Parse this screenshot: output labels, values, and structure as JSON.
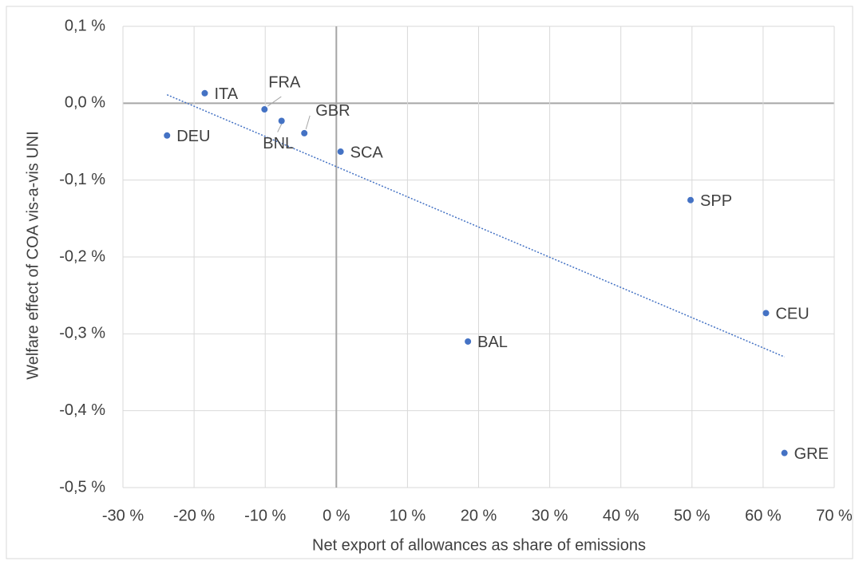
{
  "chart_data": {
    "type": "scatter",
    "xlabel": "Net export of allowances as share of emissions",
    "ylabel": "Welfare effect of COA vis-a-vis UNI",
    "labels": [
      "ITA",
      "FRA",
      "BNL",
      "GBR",
      "DEU",
      "SCA",
      "SPP",
      "CEU",
      "BAL",
      "GRE"
    ],
    "x": [
      -18.5,
      -10.1,
      -7.7,
      -4.5,
      -23.8,
      0.6,
      49.8,
      60.4,
      18.5,
      63.0
    ],
    "y": [
      0.013,
      -0.008,
      -0.023,
      -0.039,
      -0.042,
      -0.063,
      -0.126,
      -0.273,
      -0.31,
      -0.455
    ],
    "color": "#4472c4",
    "trendline": {
      "x": [
        -23.8,
        63.0
      ],
      "y": [
        0.011,
        -0.33
      ]
    },
    "xlim": [
      -30,
      70
    ],
    "xticks": [
      {
        "value": -30,
        "label": "-30 %"
      },
      {
        "value": -20,
        "label": "-20 %"
      },
      {
        "value": -10,
        "label": "-10 %"
      },
      {
        "value": 0,
        "label": "0 %"
      },
      {
        "value": 10,
        "label": "10 %"
      },
      {
        "value": 20,
        "label": "20 %"
      },
      {
        "value": 30,
        "label": "30 %"
      },
      {
        "value": 40,
        "label": "40 %"
      },
      {
        "value": 50,
        "label": "50 %"
      },
      {
        "value": 60,
        "label": "60 %"
      },
      {
        "value": 70,
        "label": "70 %"
      }
    ],
    "ylim": [
      -0.5,
      0.1
    ],
    "yticks": [
      {
        "value": 0.1,
        "label": "0,1 %"
      },
      {
        "value": 0,
        "label": "0,0 %"
      },
      {
        "value": -0.1,
        "label": "-0,1 %"
      },
      {
        "value": -0.2,
        "label": "-0,2 %"
      },
      {
        "value": -0.3,
        "label": "-0,3 %"
      },
      {
        "value": -0.4,
        "label": "-0,4 %"
      },
      {
        "value": -0.5,
        "label": "-0,5 %"
      }
    ],
    "grid": true
  }
}
